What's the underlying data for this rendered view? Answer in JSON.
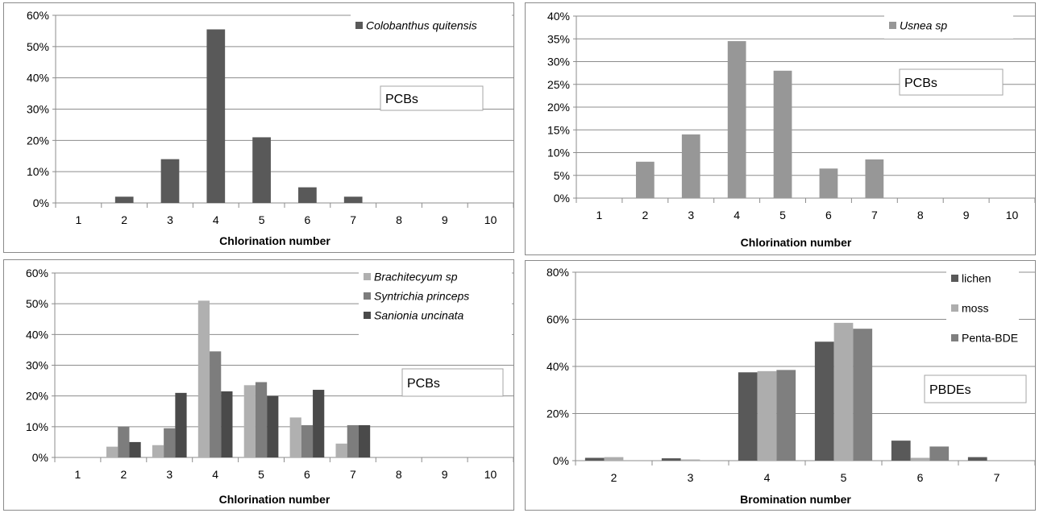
{
  "chart_data": [
    {
      "type": "bar",
      "categories": [
        "1",
        "2",
        "3",
        "4",
        "5",
        "6",
        "7",
        "8",
        "9",
        "10"
      ],
      "series": [
        {
          "name": "Colobanthus quitensis",
          "values": [
            0,
            2,
            14,
            55.5,
            21,
            5,
            2,
            0,
            0,
            0
          ],
          "color": "#595959"
        }
      ],
      "ylim": [
        0,
        60
      ],
      "yticks": [
        "0%",
        "10%",
        "20%",
        "30%",
        "40%",
        "50%",
        "60%"
      ],
      "xlabel": "Chlorination number",
      "ylabel": "",
      "title": "",
      "annotation": "PCBs",
      "grid": true,
      "legend": "top-right",
      "legend_italic": true
    },
    {
      "type": "bar",
      "categories": [
        "1",
        "2",
        "3",
        "4",
        "5",
        "6",
        "7",
        "8",
        "9",
        "10"
      ],
      "series": [
        {
          "name": "Usnea sp",
          "values": [
            0,
            8,
            14,
            34.5,
            28,
            6.5,
            8.5,
            0,
            0,
            0
          ],
          "color": "#979797"
        }
      ],
      "ylim": [
        0,
        40
      ],
      "yticks": [
        "0%",
        "5%",
        "10%",
        "15%",
        "20%",
        "25%",
        "30%",
        "35%",
        "40%"
      ],
      "xlabel": "Chlorination number",
      "ylabel": "",
      "title": "",
      "annotation": "PCBs",
      "grid": true,
      "legend": "top-right",
      "legend_italic": true
    },
    {
      "type": "bar",
      "categories": [
        "1",
        "2",
        "3",
        "4",
        "5",
        "6",
        "7",
        "8",
        "9",
        "10"
      ],
      "series": [
        {
          "name": "Brachitecyum sp",
          "values": [
            0,
            3.5,
            4,
            51,
            23.5,
            13,
            4.5,
            0,
            0,
            0
          ],
          "color": "#b0b0b0"
        },
        {
          "name": "Syntrichia princeps",
          "values": [
            0,
            10,
            9.5,
            34.5,
            24.5,
            10.5,
            10.5,
            0,
            0,
            0
          ],
          "color": "#7d7d7d"
        },
        {
          "name": "Sanionia uncinata",
          "values": [
            0,
            5,
            21,
            21.5,
            20,
            22,
            10.5,
            0,
            0,
            0
          ],
          "color": "#4a4a4a"
        }
      ],
      "ylim": [
        0,
        60
      ],
      "yticks": [
        "0%",
        "10%",
        "20%",
        "30%",
        "40%",
        "50%",
        "60%"
      ],
      "xlabel": "Chlorination number",
      "ylabel": "",
      "title": "",
      "annotation": "PCBs",
      "grid": true,
      "legend": "top-right",
      "legend_italic": true
    },
    {
      "type": "bar",
      "categories": [
        "2",
        "3",
        "4",
        "5",
        "6",
        "7"
      ],
      "series": [
        {
          "name": "lichen",
          "values": [
            1.2,
            1,
            37.5,
            50.5,
            8.5,
            1.5
          ],
          "color": "#595959"
        },
        {
          "name": "moss",
          "values": [
            1.5,
            0.5,
            38,
            58.5,
            1.2,
            0
          ],
          "color": "#adadad"
        },
        {
          "name": "Penta-BDE",
          "values": [
            0,
            0,
            38.5,
            56,
            6,
            0
          ],
          "color": "#7f7f7f"
        }
      ],
      "ylim": [
        0,
        80
      ],
      "yticks": [
        "0%",
        "20%",
        "40%",
        "60%",
        "80%"
      ],
      "xlabel": "Bromination number",
      "ylabel": "",
      "title": "",
      "annotation": "PBDEs",
      "grid": true,
      "legend": "top-right",
      "legend_italic": false
    }
  ]
}
